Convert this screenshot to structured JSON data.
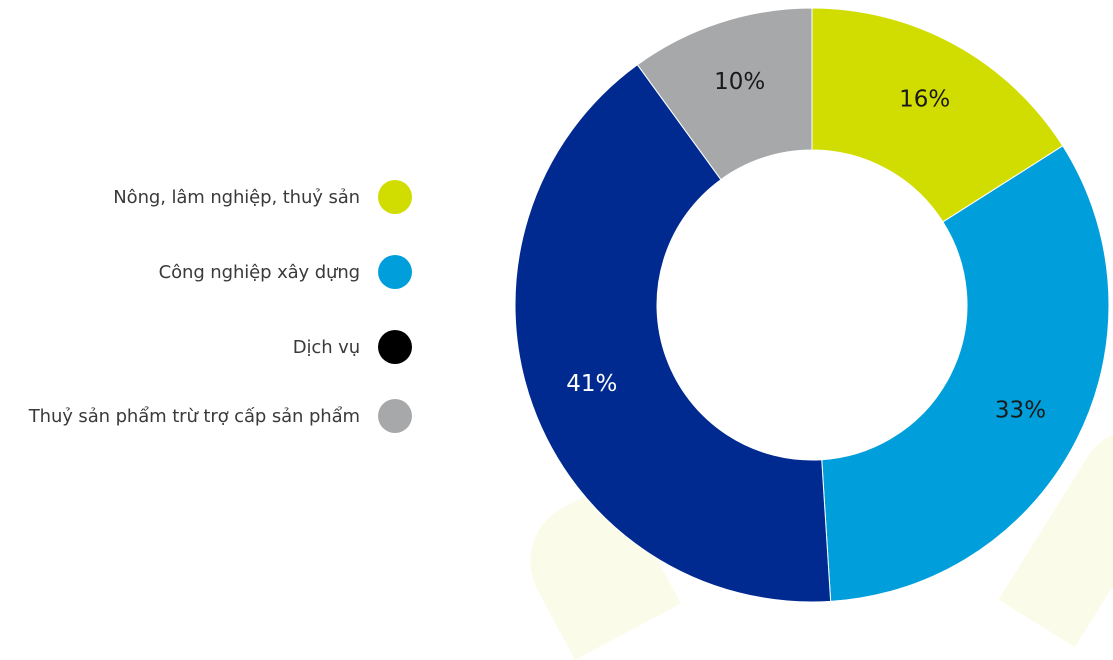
{
  "chart_data": {
    "type": "pie",
    "style": "donut",
    "slices": [
      {
        "label": "Nông, lâm nghiệp, thuỷ sản",
        "value": 16,
        "value_label": "16%",
        "color": "#d1dc00",
        "text_color": "#1a1a1a"
      },
      {
        "label": "Công nghiệp xây dựng",
        "value": 33,
        "value_label": "33%",
        "color": "#009fdb",
        "text_color": "#1a1a1a"
      },
      {
        "label": "Dịch vụ",
        "value": 41,
        "value_label": "41%",
        "color": "#002a8f",
        "text_color": "#ffffff"
      },
      {
        "label": "Thuỷ sản phẩm trừ trợ cấp sản phẩm",
        "value": 10,
        "value_label": "10%",
        "color": "#a7a8aa",
        "text_color": "#1a1a1a"
      }
    ],
    "legend": {
      "placement": "left",
      "items": [
        {
          "label": "Nông, lâm nghiệp, thuỷ sản",
          "color": "#d1dc00"
        },
        {
          "label": "Công nghiệp xây dựng",
          "color": "#009fdb"
        },
        {
          "label": "Dịch vụ",
          "color": "#000000"
        },
        {
          "label": "Thuỷ sản phẩm trừ trợ cấp sản phẩm",
          "color": "#a7a8aa"
        }
      ]
    }
  }
}
